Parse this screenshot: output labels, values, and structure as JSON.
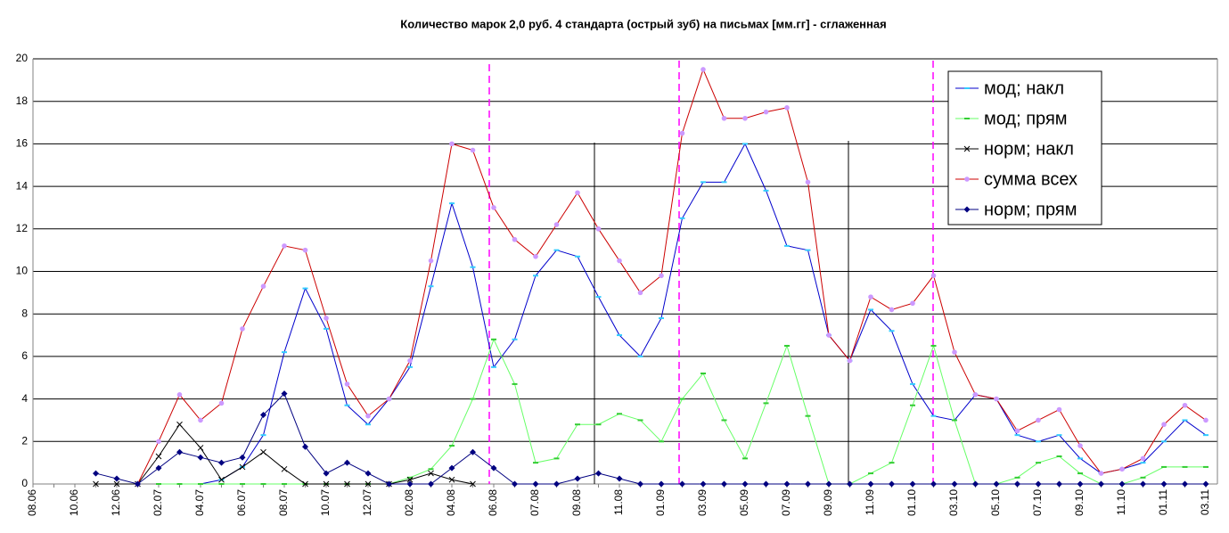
{
  "chart_data": {
    "type": "line",
    "title": "Количество марок 2,0 руб. 4 стандарта (острый зуб) на письмах [мм.гг] - сглаженная",
    "categories": [
      "08.06",
      null,
      "10.06",
      null,
      "12.06",
      null,
      "02.07",
      null,
      "04.07",
      null,
      "06.07",
      null,
      "08.07",
      null,
      "10.07",
      null,
      "12.07",
      null,
      "02.08",
      null,
      "04.08",
      null,
      "06.08",
      null,
      "07.08",
      null,
      "09.08",
      null,
      "11.08",
      null,
      "01.09",
      null,
      "03.09",
      null,
      "05.09",
      null,
      "07.09",
      null,
      "09.09",
      null,
      "11.09",
      null,
      "01.10",
      null,
      "03.10",
      null,
      "05.10",
      null,
      "07.10",
      null,
      "09.10",
      null,
      "11.10",
      null,
      "01.11",
      null,
      "03.11"
    ],
    "ylim": [
      0,
      20
    ],
    "yticks": [
      0,
      2,
      4,
      6,
      8,
      10,
      12,
      14,
      16,
      18,
      20
    ],
    "grid": true,
    "legend": "top-right",
    "series": [
      {
        "name": "мод; накл",
        "color": "#0000cc",
        "marker_color": "#33ccff",
        "marker": "dash",
        "values": [
          null,
          null,
          null,
          null,
          null,
          null,
          null,
          null,
          0,
          0.2,
          0.8,
          2.3,
          6.2,
          9.2,
          7.3,
          3.7,
          2.8,
          4.0,
          5.5,
          9.3,
          13.2,
          10.2,
          5.5,
          6.8,
          9.8,
          11.0,
          10.7,
          8.8,
          7.0,
          6.0,
          7.8,
          12.5,
          14.2,
          14.2,
          16.0,
          13.8,
          11.2,
          11.0,
          7.0,
          5.8,
          8.2,
          7.2,
          4.7,
          3.2,
          3.0,
          4.2,
          4.0,
          2.3,
          2.0,
          2.3,
          1.2,
          0.5,
          0.7,
          1.0,
          2.0,
          3.0,
          2.3
        ]
      },
      {
        "name": "мод; прям",
        "color": "#66ff66",
        "marker_color": "#33cc33",
        "marker": "dash",
        "values": [
          null,
          null,
          null,
          null,
          null,
          null,
          0,
          0,
          0,
          0,
          0,
          0,
          0,
          0,
          0,
          0,
          0,
          0,
          0.3,
          0.7,
          1.8,
          4.0,
          6.8,
          4.7,
          1.0,
          1.2,
          2.8,
          2.8,
          3.3,
          3.0,
          2.0,
          4.0,
          5.2,
          3.0,
          1.2,
          3.8,
          6.5,
          3.2,
          0,
          0,
          0.5,
          1.0,
          3.7,
          6.5,
          3.0,
          0,
          0,
          0.3,
          1.0,
          1.3,
          0.5,
          0,
          0,
          0.3,
          0.8,
          0.8,
          0.8
        ]
      },
      {
        "name": "норм; накл",
        "color": "#000000",
        "marker_color": "#000000",
        "marker": "x",
        "values": [
          null,
          null,
          null,
          0,
          0,
          0,
          1.3,
          2.8,
          1.7,
          0.2,
          0.8,
          1.5,
          0.7,
          0,
          0,
          0,
          0,
          0,
          0.2,
          0.5,
          0.2,
          0,
          null,
          null,
          null,
          null,
          null,
          null,
          null,
          null,
          null,
          null,
          null,
          null,
          null,
          null,
          null,
          null,
          null,
          null,
          null,
          null,
          null,
          null,
          null,
          null,
          null,
          null,
          null,
          null,
          null,
          null,
          null,
          null,
          null,
          null,
          null
        ]
      },
      {
        "name": "сумма всех",
        "color": "#cc0000",
        "marker_color": "#cc99ff",
        "marker": "circle",
        "values": [
          null,
          null,
          null,
          null,
          null,
          0,
          2.0,
          4.2,
          3.0,
          3.8,
          7.3,
          9.3,
          11.2,
          11.0,
          7.8,
          4.7,
          3.2,
          4.0,
          5.8,
          10.5,
          16.0,
          15.7,
          13.0,
          11.5,
          10.7,
          12.2,
          13.7,
          12.0,
          10.5,
          9.0,
          9.8,
          16.5,
          19.5,
          17.2,
          17.2,
          17.5,
          17.7,
          14.2,
          7.0,
          5.8,
          8.8,
          8.2,
          8.5,
          9.8,
          6.2,
          4.2,
          4.0,
          2.5,
          3.0,
          3.5,
          1.8,
          0.5,
          0.7,
          1.2,
          2.8,
          3.7,
          3.0
        ]
      },
      {
        "name": "норм; прям",
        "color": "#000080",
        "marker_color": "#000080",
        "marker": "diamond",
        "values": [
          null,
          null,
          null,
          0.5,
          0.25,
          0,
          0.75,
          1.5,
          1.25,
          1.0,
          1.25,
          3.25,
          4.25,
          1.75,
          0.5,
          1.0,
          0.5,
          0,
          0,
          0,
          0.75,
          1.5,
          0.75,
          0,
          0,
          0,
          0.25,
          0.5,
          0.25,
          0,
          0,
          0,
          0,
          0,
          0,
          0,
          0,
          0,
          0,
          0,
          0,
          0,
          0,
          0,
          0,
          0,
          0,
          0,
          0,
          0,
          0,
          0,
          0,
          0,
          0,
          0,
          0
        ]
      }
    ]
  }
}
